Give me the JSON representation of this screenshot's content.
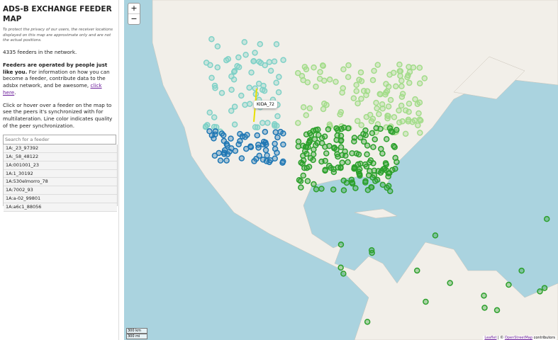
{
  "sidebar": {
    "title": "ADS-B EXCHANGE FEEDER MAP",
    "privacy": "To protect the privacy of our users, the receiver locations displayed on this map are approximate only and are not the actual positions.",
    "count": "4335 feeders in the network.",
    "intro": {
      "bold": "Feeders are operated by people just like you.",
      "text": " For information on how you can become a feeder, contribute data to the adsbx network, and be awesome, ",
      "link": "click here",
      "end": "."
    },
    "help": "Click or hover over a feeder on the map to see the peers it's synchronized with for multilateration. Line color indicates quality of the peer synchronization.",
    "search": "Search for a feeder",
    "list": [
      "1A:_23_97392",
      "1A:_58_48122",
      "1A:001001_23",
      "1A:1_30192",
      "1A:530elmorro_78",
      "1A:7002_93",
      "1A:a-02_99801",
      "1A:a6c1_88056"
    ]
  },
  "map": {
    "zoom_in": "+",
    "zoom_out": "−",
    "tooltip": "KIDA_72",
    "scale_km": "300 km",
    "scale_mi": "300 mi",
    "attribution": {
      "leaflet": "Leaflet",
      "sep": " | © ",
      "osm": "OpenStreetMap",
      "end": " contributors"
    }
  }
}
